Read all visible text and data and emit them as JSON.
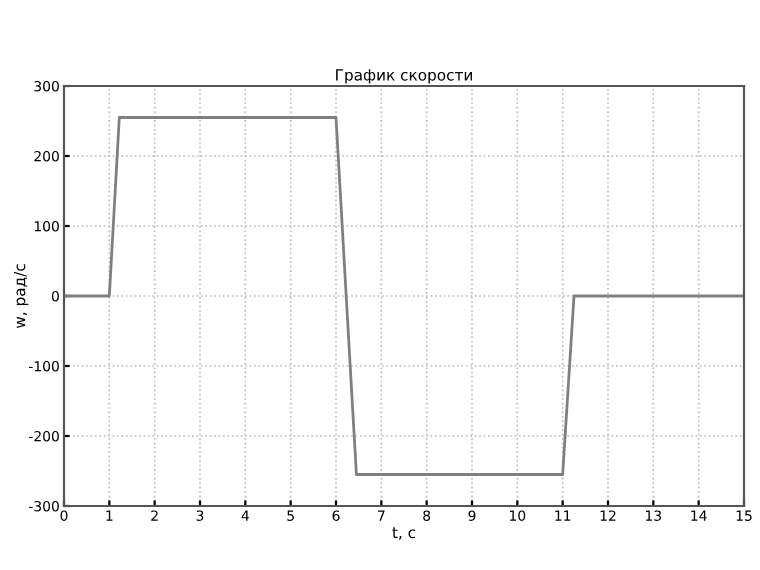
{
  "chart_data": {
    "type": "line",
    "title": "График скорости",
    "xlabel": "t, с",
    "ylabel": "w, рад/с",
    "xlim": [
      0,
      15
    ],
    "ylim": [
      -300,
      300
    ],
    "xticks": [
      0,
      1,
      2,
      3,
      4,
      5,
      6,
      7,
      8,
      9,
      10,
      11,
      12,
      13,
      14,
      15
    ],
    "yticks": [
      -300,
      -200,
      -100,
      0,
      100,
      200,
      300
    ],
    "grid": true,
    "line_style": "solid",
    "marker": "none",
    "series": [
      {
        "color": "#7f7f7f",
        "x": [
          0,
          1.0,
          1.22,
          6.0,
          6.45,
          11.0,
          11.25,
          15
        ],
        "values": [
          0,
          0,
          255,
          255,
          -255,
          -255,
          0,
          0
        ]
      }
    ]
  }
}
